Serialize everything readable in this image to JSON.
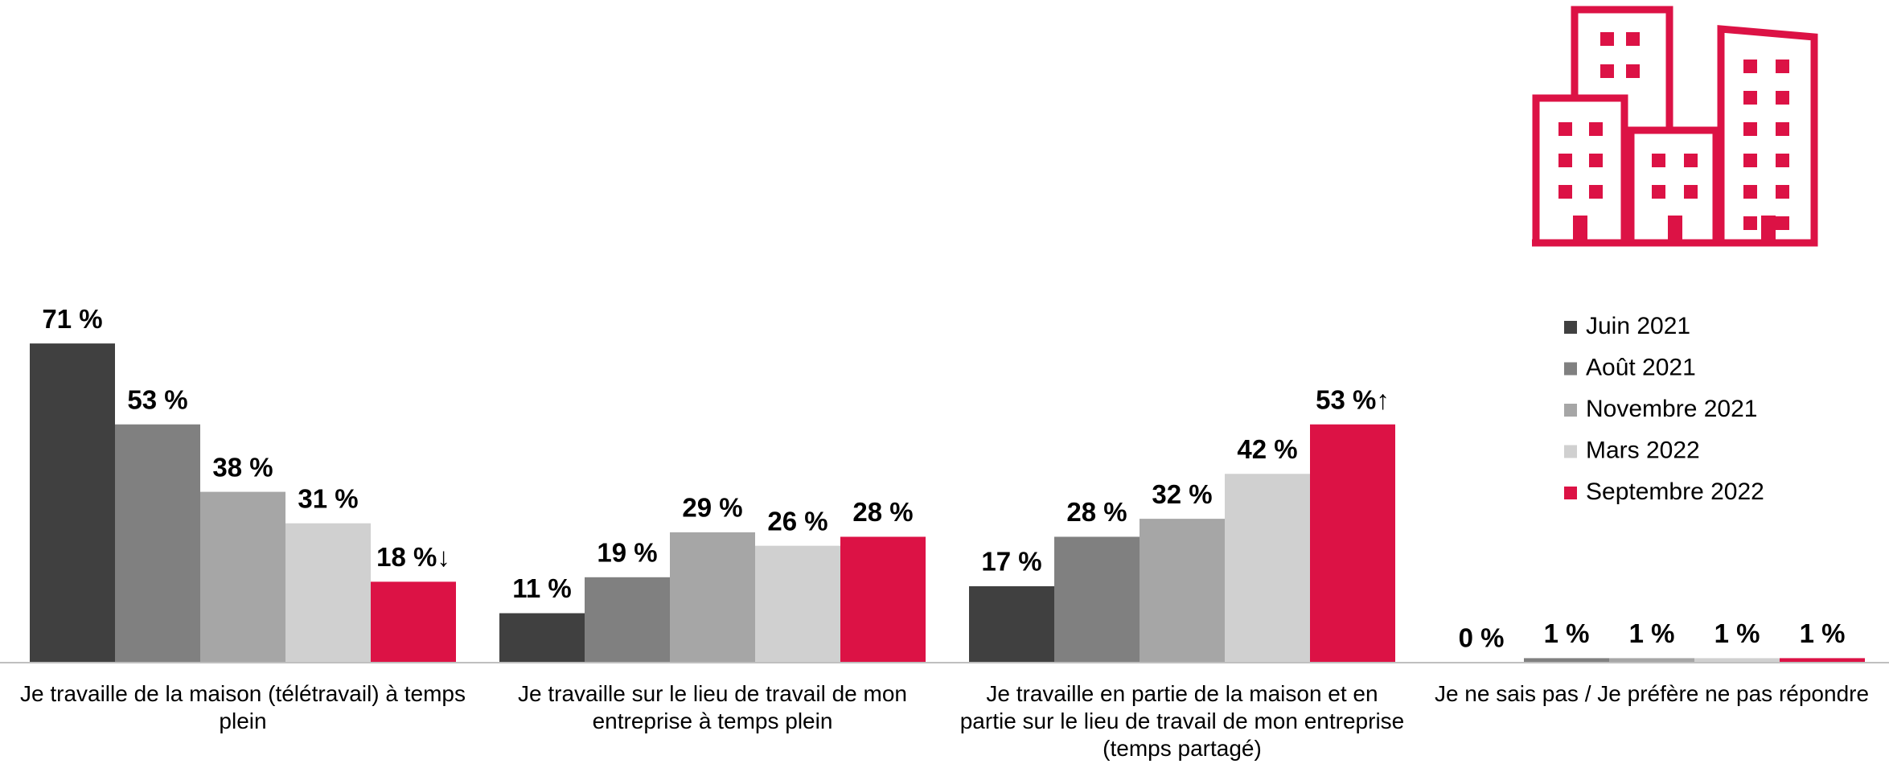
{
  "chart_data": {
    "type": "bar",
    "categories": [
      "Je travaille de la maison (télétravail) à temps plein",
      "Je travaille sur le lieu de travail de mon entreprise à temps plein",
      "Je travaille en partie de la maison et en partie sur le lieu de travail de mon entreprise (temps partagé)",
      "Je ne sais pas / Je préfère ne pas répondre"
    ],
    "series": [
      {
        "name": "Juin 2021",
        "color": "#404040",
        "values": [
          71,
          11,
          17,
          0
        ],
        "value_labels": [
          "71 %",
          "11 %",
          "17 %",
          "0 %"
        ]
      },
      {
        "name": "Août 2021",
        "color": "#808080",
        "values": [
          53,
          19,
          28,
          1
        ],
        "value_labels": [
          "53 %",
          "19 %",
          "28 %",
          "1 %"
        ]
      },
      {
        "name": "Novembre 2021",
        "color": "#a6a6a6",
        "values": [
          38,
          29,
          32,
          1
        ],
        "value_labels": [
          "38 %",
          "29 %",
          "32 %",
          "1 %"
        ]
      },
      {
        "name": "Mars 2022",
        "color": "#d0d0d0",
        "values": [
          31,
          26,
          42,
          1
        ],
        "value_labels": [
          "31 %",
          "26 %",
          "42 %",
          "1 %"
        ]
      },
      {
        "name": "Septembre 2022",
        "color": "#dc1245",
        "values": [
          18,
          28,
          53,
          1
        ],
        "value_labels": [
          "18 %↓",
          "28 %",
          "53 %↑",
          "1 %"
        ]
      }
    ],
    "ylim": [
      0,
      100
    ],
    "legend": "right"
  }
}
